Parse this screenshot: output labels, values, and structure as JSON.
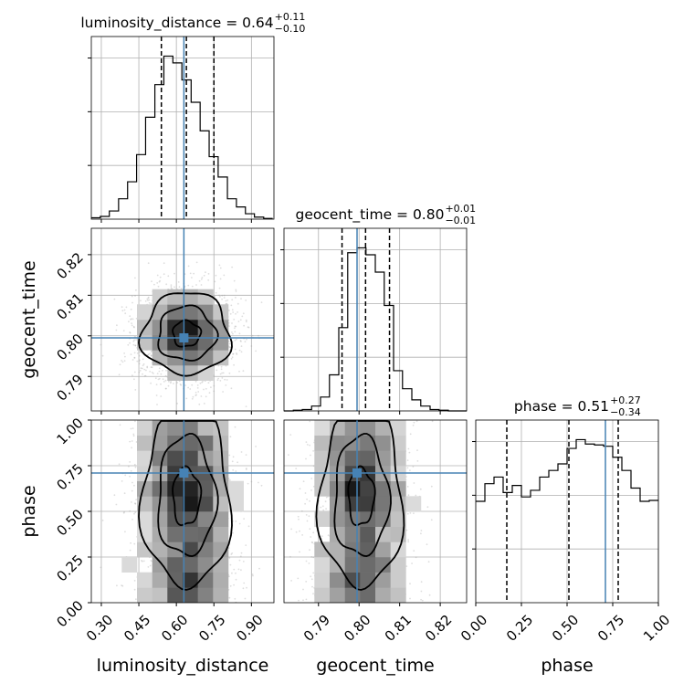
{
  "chart_data": {
    "type": "corner",
    "parameters": [
      "luminosity_distance",
      "geocent_time",
      "phase"
    ],
    "truths": {
      "luminosity_distance": 0.63,
      "geocent_time": 0.7995,
      "phase": 0.71
    },
    "colors": {
      "truth": "#4682b4",
      "hist": "#000000",
      "scatter": "#a0a0a0"
    },
    "axes_ranges": {
      "luminosity_distance": [
        0.26,
        0.99
      ],
      "geocent_time": [
        0.7815,
        0.8265
      ],
      "phase": [
        0.0,
        1.0
      ]
    },
    "ticks": {
      "luminosity_distance": [
        "0.30",
        "0.45",
        "0.60",
        "0.75",
        "0.90"
      ],
      "geocent_time": [
        "0.79",
        "0.80",
        "0.81",
        "0.82"
      ],
      "phase": [
        "0.00",
        "0.25",
        "0.50",
        "0.75",
        "1.00"
      ]
    },
    "grid": true,
    "diagonal": [
      {
        "parameter": "luminosity_distance",
        "title_prefix": "luminosity_distance = 0.64",
        "title_sup": "+0.11",
        "title_sub": "−0.10",
        "quantiles": [
          0.54,
          0.64,
          0.75
        ],
        "bin_edges": [
          0.26,
          0.296,
          0.332,
          0.369,
          0.405,
          0.441,
          0.477,
          0.514,
          0.55,
          0.586,
          0.622,
          0.659,
          0.695,
          0.731,
          0.767,
          0.804,
          0.84,
          0.876,
          0.912,
          0.949,
          0.985
        ],
        "counts": [
          2,
          4,
          12,
          30,
          55,
          95,
          150,
          198,
          240,
          230,
          205,
          172,
          130,
          92,
          62,
          30,
          18,
          8,
          3,
          1
        ]
      },
      {
        "parameter": "geocent_time",
        "title_prefix": "geocent_time = 0.80",
        "title_sup": "+0.01",
        "title_sub": "−0.01",
        "quantiles": [
          0.7958,
          0.8016,
          0.8075
        ],
        "bin_edges": [
          0.7815,
          0.7838,
          0.786,
          0.7883,
          0.7905,
          0.7927,
          0.795,
          0.7972,
          0.7995,
          0.8017,
          0.804,
          0.8062,
          0.8085,
          0.8107,
          0.813,
          0.8152,
          0.8175,
          0.8197,
          0.822,
          0.8242,
          0.8265
        ],
        "counts": [
          0,
          1,
          2,
          7,
          20,
          52,
          120,
          228,
          235,
          225,
          200,
          152,
          58,
          32,
          16,
          7,
          2,
          1,
          0,
          0
        ]
      },
      {
        "parameter": "phase",
        "title_prefix": "phase = 0.51",
        "title_sup": "+0.27",
        "title_sub": "−0.34",
        "quantiles": [
          0.17,
          0.51,
          0.78
        ],
        "bin_edges": [
          0.0,
          0.05,
          0.1,
          0.15,
          0.2,
          0.25,
          0.3,
          0.35,
          0.4,
          0.45,
          0.5,
          0.55,
          0.6,
          0.65,
          0.7,
          0.75,
          0.8,
          0.85,
          0.9,
          0.95,
          1.0
        ],
        "counts": [
          230,
          270,
          285,
          250,
          266,
          240,
          255,
          285,
          300,
          315,
          350,
          370,
          360,
          358,
          355,
          330,
          300,
          260,
          230,
          232
        ]
      }
    ],
    "scatter_samples": 2200
  },
  "labels": {
    "x": [
      "luminosity_distance",
      "geocent_time",
      "phase"
    ],
    "y": [
      "geocent_time",
      "phase"
    ]
  }
}
